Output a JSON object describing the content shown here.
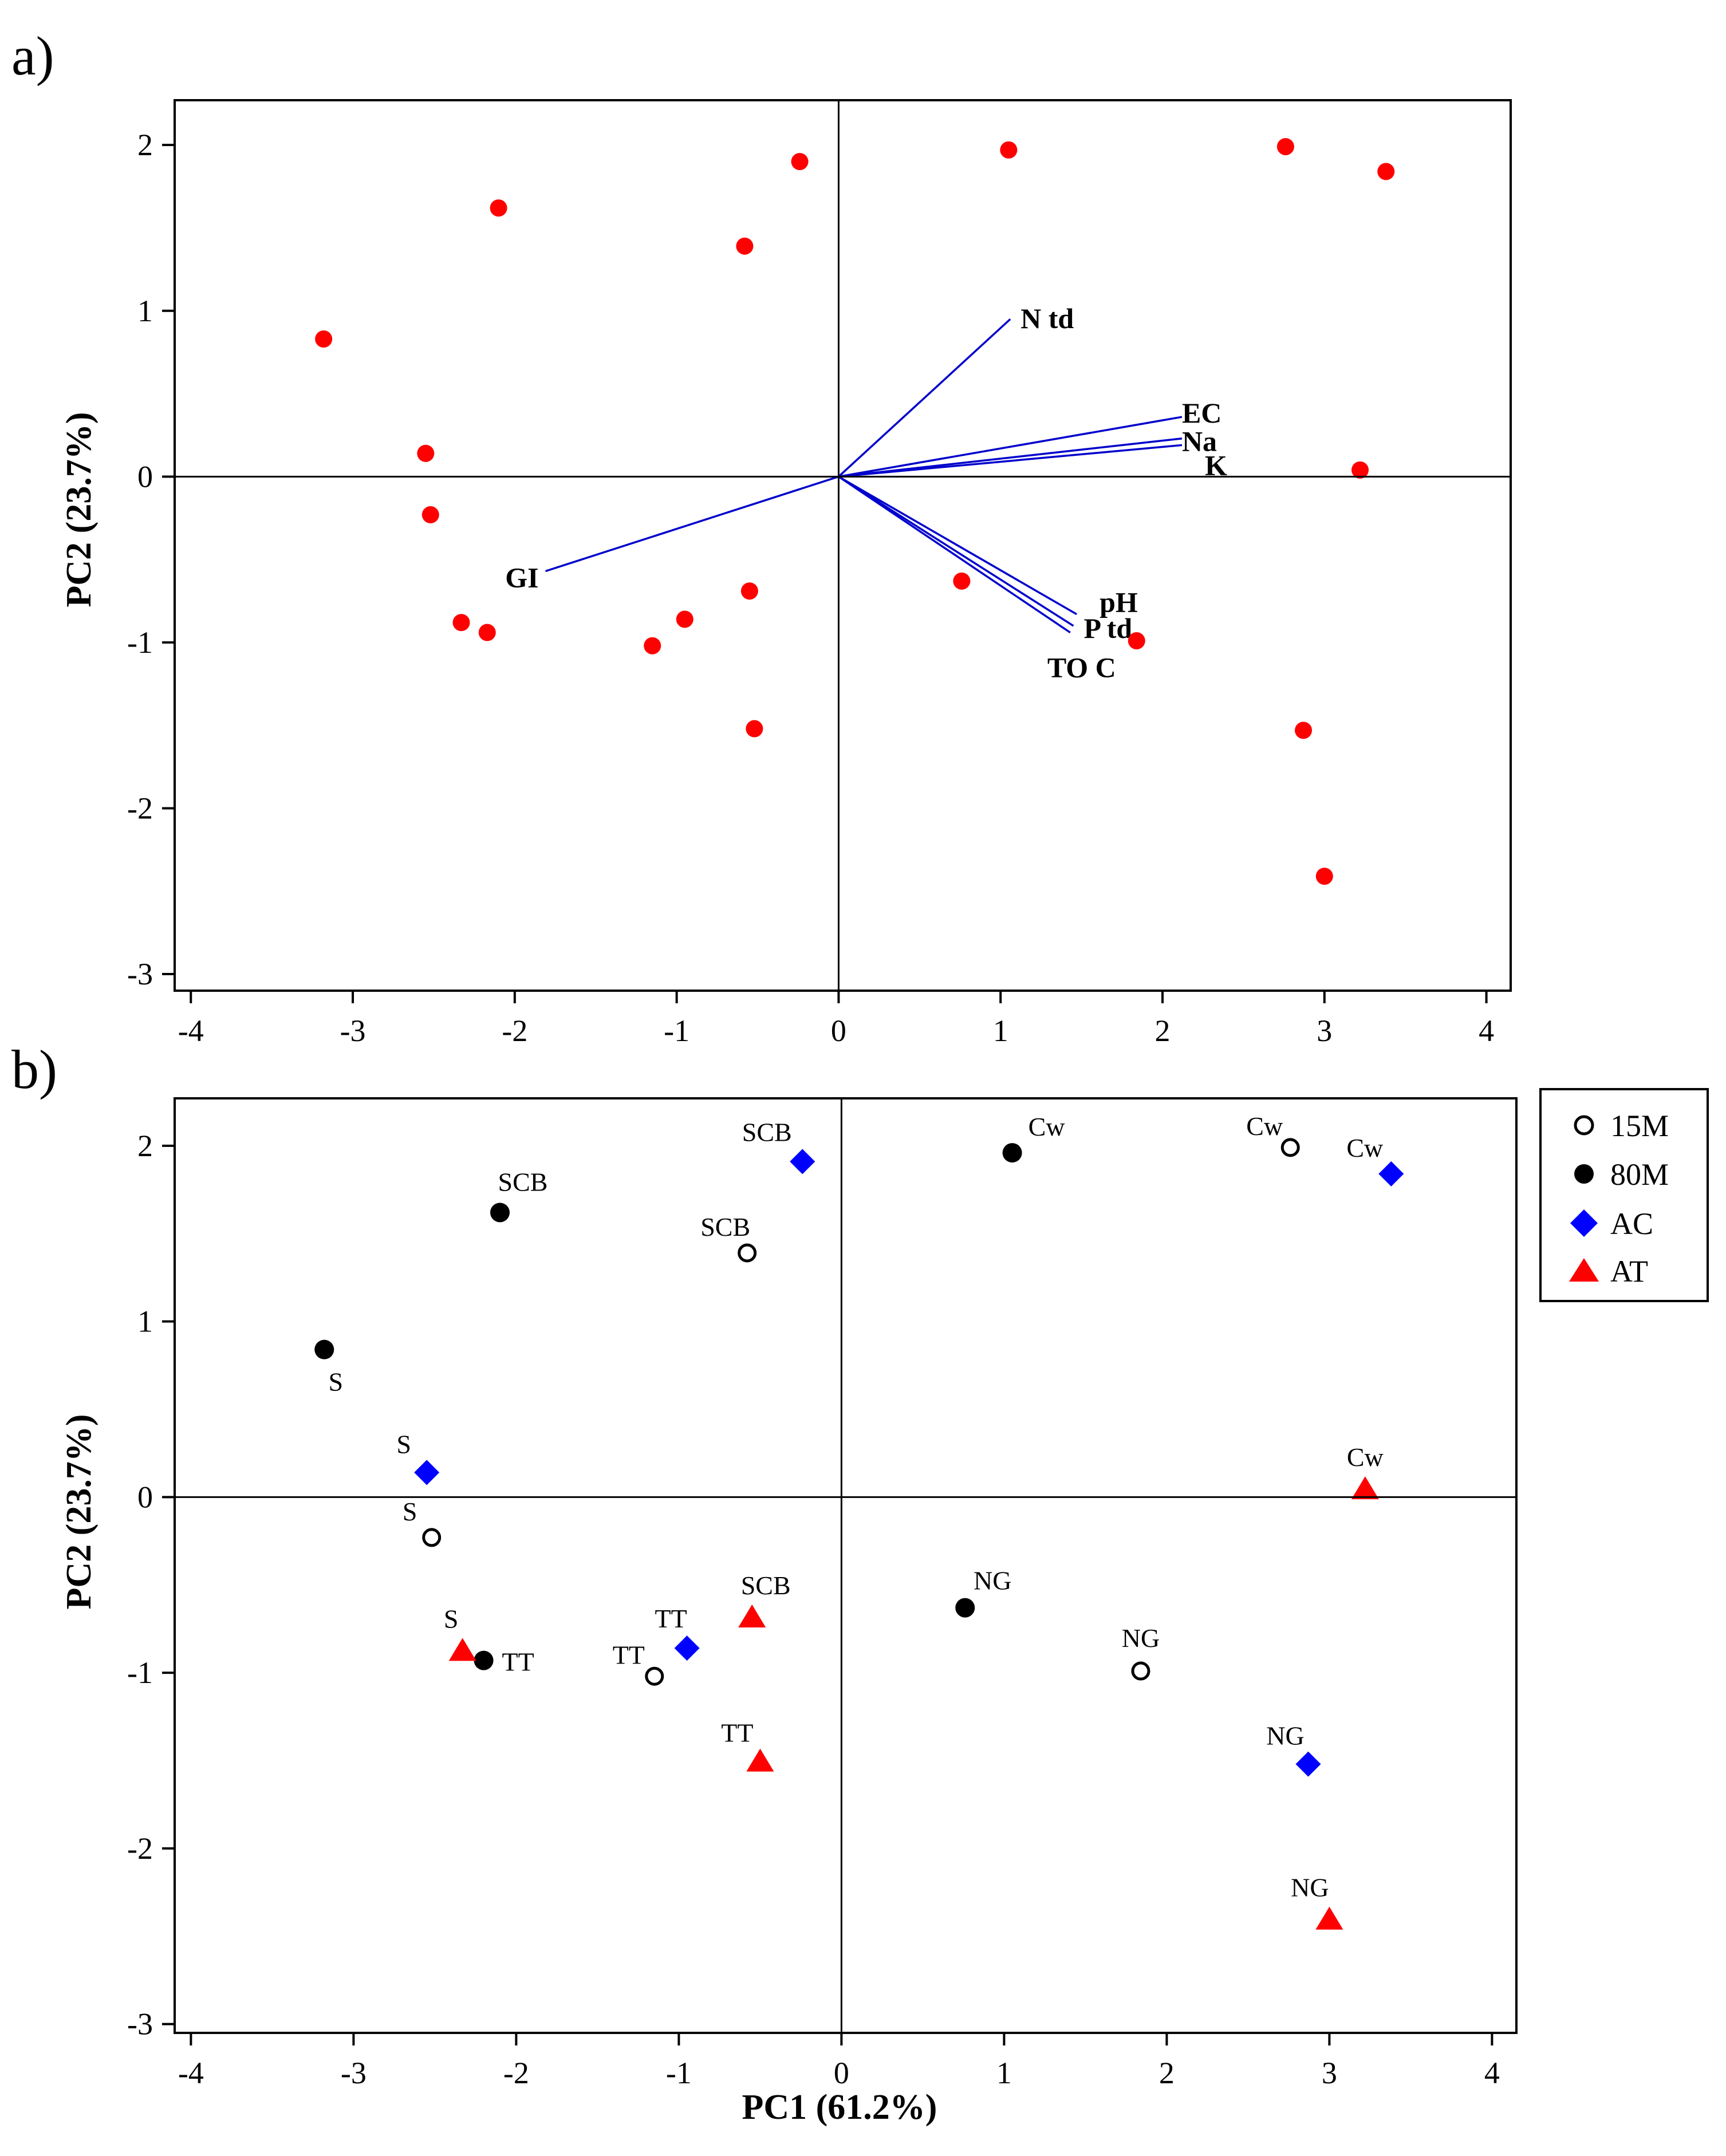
{
  "chart_data": [
    {
      "type": "scatter",
      "panel_label": "a)",
      "title": "",
      "xlabel": "",
      "ylabel": "PC2 (23.7%)",
      "xlim": [
        -4.1,
        4.15
      ],
      "ylim": [
        -3.1,
        2.27
      ],
      "xticks": [
        "-4",
        "-3",
        "-2",
        "-1",
        "0",
        "1",
        "2",
        "3",
        "4"
      ],
      "yticks": [
        "-3",
        "-2",
        "-1",
        "0",
        "1",
        "2"
      ],
      "grid": false,
      "series": [
        {
          "marker": "filled-circle",
          "color": "#ff0000",
          "points": [
            {
              "x": -3.18,
              "y": 0.83
            },
            {
              "x": -2.55,
              "y": 0.14
            },
            {
              "x": -2.52,
              "y": -0.23
            },
            {
              "x": -2.33,
              "y": -0.88
            },
            {
              "x": -2.17,
              "y": -0.94
            },
            {
              "x": -2.1,
              "y": 1.62
            },
            {
              "x": -1.15,
              "y": -1.02
            },
            {
              "x": -0.95,
              "y": -0.86
            },
            {
              "x": -0.58,
              "y": 1.39
            },
            {
              "x": -0.55,
              "y": -0.69
            },
            {
              "x": -0.52,
              "y": -1.52
            },
            {
              "x": -0.24,
              "y": 1.9
            },
            {
              "x": 0.76,
              "y": -0.63
            },
            {
              "x": 1.05,
              "y": 1.97
            },
            {
              "x": 1.84,
              "y": -0.99
            },
            {
              "x": 2.76,
              "y": 1.99
            },
            {
              "x": 2.87,
              "y": -1.53
            },
            {
              "x": 3.0,
              "y": -2.41
            },
            {
              "x": 3.22,
              "y": 0.04
            },
            {
              "x": 3.38,
              "y": 1.84
            }
          ]
        }
      ],
      "vectors": [
        {
          "label": "N td",
          "x": 1.06,
          "y": 0.95
        },
        {
          "label": "EC",
          "x": 2.12,
          "y": 0.36
        },
        {
          "label": "Na",
          "x": 2.12,
          "y": 0.23
        },
        {
          "label": "K",
          "x": 2.12,
          "y": 0.19
        },
        {
          "label": "pH",
          "x": 1.47,
          "y": -0.83
        },
        {
          "label": "P td",
          "x": 1.45,
          "y": -0.9
        },
        {
          "label": "TO C",
          "x": 1.43,
          "y": -0.94
        },
        {
          "label": "GI",
          "x": -1.81,
          "y": -0.57
        }
      ]
    },
    {
      "type": "scatter",
      "panel_label": "b)",
      "title": "",
      "xlabel": "PC1 (61.2%)",
      "ylabel": "PC2 (23.7%)",
      "xlim": [
        -4.1,
        4.15
      ],
      "ylim": [
        -3.05,
        2.27
      ],
      "xticks": [
        "-4",
        "-3",
        "-2",
        "-1",
        "0",
        "1",
        "2",
        "3",
        "4"
      ],
      "yticks": [
        "-3",
        "-2",
        "-1",
        "0",
        "1",
        "2"
      ],
      "grid": false,
      "legend_position": "outside-top-right",
      "series": [
        {
          "name": "15M",
          "marker": "open-circle",
          "color": "#000000",
          "points": [
            {
              "x": -2.52,
              "y": -0.23,
              "label": "S"
            },
            {
              "x": -1.15,
              "y": -1.02,
              "label": "TT"
            },
            {
              "x": -0.58,
              "y": 1.39,
              "label": "SCB"
            },
            {
              "x": 1.84,
              "y": -0.99,
              "label": "NG"
            },
            {
              "x": 2.76,
              "y": 1.99,
              "label": "Cw"
            }
          ]
        },
        {
          "name": "80M",
          "marker": "filled-circle",
          "color": "#000000",
          "points": [
            {
              "x": -3.18,
              "y": 0.84,
              "label": "S"
            },
            {
              "x": -2.2,
              "y": -0.93,
              "label": "TT"
            },
            {
              "x": -2.1,
              "y": 1.62,
              "label": "SCB"
            },
            {
              "x": 0.76,
              "y": -0.63,
              "label": "NG"
            },
            {
              "x": 1.05,
              "y": 1.96,
              "label": "Cw"
            }
          ]
        },
        {
          "name": "AC",
          "marker": "diamond",
          "color": "#0000ff",
          "points": [
            {
              "x": -2.55,
              "y": 0.14,
              "label": "S"
            },
            {
              "x": -0.95,
              "y": -0.86,
              "label": "TT"
            },
            {
              "x": -0.24,
              "y": 1.91,
              "label": "SCB"
            },
            {
              "x": 2.87,
              "y": -1.52,
              "label": "NG"
            },
            {
              "x": 3.38,
              "y": 1.84,
              "label": "Cw"
            }
          ]
        },
        {
          "name": "AT",
          "marker": "triangle",
          "color": "#ff0000",
          "points": [
            {
              "x": -2.33,
              "y": -0.88,
              "label": "S"
            },
            {
              "x": -0.55,
              "y": -0.69,
              "label": "SCB"
            },
            {
              "x": -0.5,
              "y": -1.51,
              "label": "TT"
            },
            {
              "x": 3.0,
              "y": -2.41,
              "label": "NG"
            },
            {
              "x": 3.22,
              "y": 0.04,
              "label": "Cw"
            }
          ]
        }
      ]
    }
  ]
}
